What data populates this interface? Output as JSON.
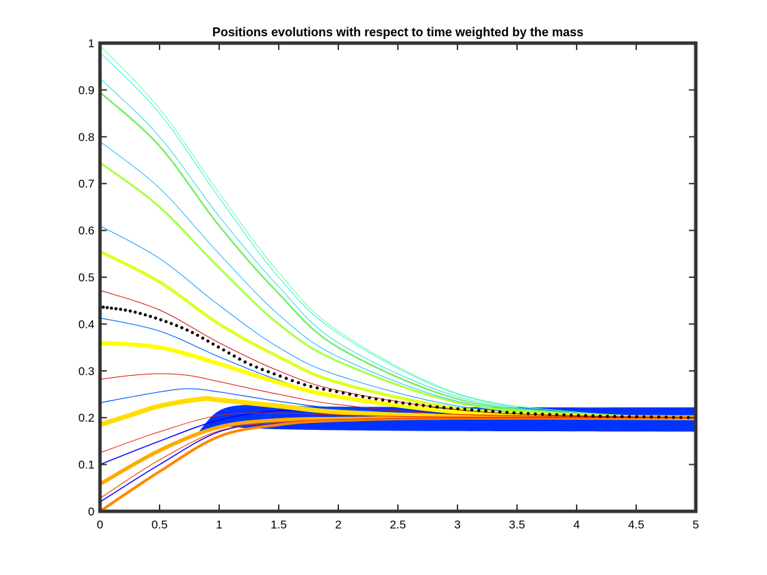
{
  "chart_data": {
    "type": "line",
    "title": "Positions evolutions with respect to time weighted by the mass",
    "xlabel": "",
    "ylabel": "",
    "xlim": [
      0,
      5
    ],
    "ylim": [
      0,
      1
    ],
    "x_ticks": [
      "0",
      "0.5",
      "1",
      "1.5",
      "2",
      "2.5",
      "3",
      "3.5",
      "4",
      "4.5",
      "5"
    ],
    "y_ticks": [
      "0",
      "0.1",
      "0.2",
      "0.3",
      "0.4",
      "0.5",
      "0.6",
      "0.7",
      "0.8",
      "0.9",
      "1"
    ],
    "grid": false,
    "converge_to": 0.2,
    "series": [
      {
        "color": "#0000ff",
        "weight": 1.5,
        "values": [
          [
            0,
            0.02
          ],
          [
            0.5,
            0.1
          ],
          [
            1,
            0.17
          ],
          [
            1.5,
            0.19
          ],
          [
            2,
            0.196
          ],
          [
            3,
            0.199
          ],
          [
            5,
            0.2
          ]
        ]
      },
      {
        "color": "#0000ff",
        "weight": 1.5,
        "values": [
          [
            0,
            0.1
          ],
          [
            0.5,
            0.15
          ],
          [
            1,
            0.195
          ],
          [
            1.5,
            0.215
          ],
          [
            2,
            0.21
          ],
          [
            3,
            0.203
          ],
          [
            5,
            0.2
          ]
        ]
      },
      {
        "color": "#0055ff",
        "weight": 1.2,
        "values": [
          [
            0,
            0.232
          ],
          [
            0.5,
            0.255
          ],
          [
            0.75,
            0.262
          ],
          [
            1,
            0.255
          ],
          [
            1.5,
            0.235
          ],
          [
            2,
            0.22
          ],
          [
            3,
            0.205
          ],
          [
            5,
            0.2
          ]
        ]
      },
      {
        "color": "#0070ff",
        "weight": 1.2,
        "values": [
          [
            0,
            0.413
          ],
          [
            0.5,
            0.385
          ],
          [
            1,
            0.33
          ],
          [
            1.5,
            0.28
          ],
          [
            2,
            0.245
          ],
          [
            3,
            0.213
          ],
          [
            4,
            0.203
          ],
          [
            5,
            0.2
          ]
        ]
      },
      {
        "color": "#0099ff",
        "weight": 1.0,
        "values": [
          [
            0,
            0.61
          ],
          [
            0.5,
            0.54
          ],
          [
            1,
            0.44
          ],
          [
            1.5,
            0.35
          ],
          [
            2,
            0.29
          ],
          [
            3,
            0.225
          ],
          [
            4,
            0.206
          ],
          [
            5,
            0.2
          ]
        ]
      },
      {
        "color": "#11bbff",
        "weight": 1.0,
        "values": [
          [
            0,
            0.79
          ],
          [
            0.5,
            0.69
          ],
          [
            1,
            0.55
          ],
          [
            1.5,
            0.42
          ],
          [
            2,
            0.33
          ],
          [
            3,
            0.235
          ],
          [
            4,
            0.208
          ],
          [
            5,
            0.2
          ]
        ]
      },
      {
        "color": "#22d8e8",
        "weight": 1.0,
        "values": [
          [
            0,
            0.925
          ],
          [
            0.5,
            0.8
          ],
          [
            1,
            0.63
          ],
          [
            1.5,
            0.48
          ],
          [
            2,
            0.36
          ],
          [
            3,
            0.245
          ],
          [
            4,
            0.21
          ],
          [
            5,
            0.2
          ]
        ]
      },
      {
        "color": "#33eedd",
        "weight": 1.0,
        "values": [
          [
            0,
            0.98
          ],
          [
            0.5,
            0.85
          ],
          [
            1,
            0.67
          ],
          [
            1.5,
            0.5
          ],
          [
            2,
            0.38
          ],
          [
            3,
            0.25
          ],
          [
            4,
            0.212
          ],
          [
            5,
            0.2
          ]
        ]
      },
      {
        "color": "#66ff99",
        "weight": 1.0,
        "values": [
          [
            0,
            0.995
          ],
          [
            0.5,
            0.86
          ],
          [
            1,
            0.68
          ],
          [
            1.5,
            0.51
          ],
          [
            2,
            0.385
          ],
          [
            3,
            0.252
          ],
          [
            4,
            0.212
          ],
          [
            5,
            0.2
          ]
        ]
      },
      {
        "color": "#77ee66",
        "weight": 2.5,
        "values": [
          [
            0,
            0.895
          ],
          [
            0.5,
            0.78
          ],
          [
            1,
            0.61
          ],
          [
            1.5,
            0.465
          ],
          [
            2,
            0.35
          ],
          [
            3,
            0.24
          ],
          [
            4,
            0.209
          ],
          [
            5,
            0.2
          ]
        ]
      },
      {
        "color": "#aaff44",
        "weight": 3.0,
        "values": [
          [
            0,
            0.745
          ],
          [
            0.5,
            0.65
          ],
          [
            1,
            0.52
          ],
          [
            1.5,
            0.4
          ],
          [
            2,
            0.32
          ],
          [
            3,
            0.232
          ],
          [
            4,
            0.207
          ],
          [
            5,
            0.2
          ]
        ]
      },
      {
        "color": "#ddff22",
        "weight": 4.5,
        "values": [
          [
            0,
            0.555
          ],
          [
            0.5,
            0.49
          ],
          [
            1,
            0.4
          ],
          [
            1.5,
            0.33
          ],
          [
            2,
            0.275
          ],
          [
            3,
            0.22
          ],
          [
            4,
            0.205
          ],
          [
            5,
            0.2
          ]
        ]
      },
      {
        "color": "#ffff00",
        "weight": 6.0,
        "values": [
          [
            0,
            0.36
          ],
          [
            0.5,
            0.35
          ],
          [
            1,
            0.315
          ],
          [
            1.5,
            0.275
          ],
          [
            2,
            0.245
          ],
          [
            3,
            0.212
          ],
          [
            4,
            0.203
          ],
          [
            5,
            0.2
          ]
        ]
      },
      {
        "color": "#ffdd00",
        "weight": 7.0,
        "values": [
          [
            0,
            0.185
          ],
          [
            0.25,
            0.205
          ],
          [
            0.5,
            0.225
          ],
          [
            0.85,
            0.24
          ],
          [
            1,
            0.238
          ],
          [
            1.5,
            0.225
          ],
          [
            2,
            0.212
          ],
          [
            3,
            0.203
          ],
          [
            5,
            0.2
          ]
        ]
      },
      {
        "color": "#ffaa00",
        "weight": 5.5,
        "values": [
          [
            0,
            0.058
          ],
          [
            0.5,
            0.13
          ],
          [
            1,
            0.18
          ],
          [
            1.5,
            0.195
          ],
          [
            2,
            0.198
          ],
          [
            3,
            0.2
          ],
          [
            5,
            0.2
          ]
        ]
      },
      {
        "color": "#ff8800",
        "weight": 4.0,
        "values": [
          [
            0,
            0.0
          ],
          [
            0.5,
            0.085
          ],
          [
            1,
            0.16
          ],
          [
            1.5,
            0.185
          ],
          [
            2,
            0.194
          ],
          [
            3,
            0.199
          ],
          [
            5,
            0.2
          ]
        ]
      },
      {
        "color": "#ee4400",
        "weight": 1.2,
        "values": [
          [
            0,
            0.028
          ],
          [
            0.5,
            0.11
          ],
          [
            1,
            0.172
          ],
          [
            1.5,
            0.19
          ],
          [
            2,
            0.196
          ],
          [
            3,
            0.199
          ],
          [
            5,
            0.2
          ]
        ]
      },
      {
        "color": "#ee2200",
        "weight": 1.0,
        "values": [
          [
            0,
            0.125
          ],
          [
            0.5,
            0.17
          ],
          [
            1,
            0.205
          ],
          [
            1.5,
            0.21
          ],
          [
            2,
            0.206
          ],
          [
            3,
            0.201
          ],
          [
            5,
            0.2
          ]
        ]
      },
      {
        "color": "#dd1100",
        "weight": 1.0,
        "values": [
          [
            0,
            0.282
          ],
          [
            0.25,
            0.29
          ],
          [
            0.5,
            0.294
          ],
          [
            0.75,
            0.29
          ],
          [
            1,
            0.277
          ],
          [
            1.5,
            0.25
          ],
          [
            2,
            0.228
          ],
          [
            3,
            0.207
          ],
          [
            5,
            0.2
          ]
        ]
      },
      {
        "color": "#cc0000",
        "weight": 1.0,
        "values": [
          [
            0,
            0.472
          ],
          [
            0.5,
            0.43
          ],
          [
            1,
            0.36
          ],
          [
            1.5,
            0.3
          ],
          [
            2,
            0.258
          ],
          [
            3,
            0.217
          ],
          [
            4,
            0.204
          ],
          [
            5,
            0.2
          ]
        ]
      }
    ],
    "band": {
      "color": "#0033ff",
      "upper": [
        [
          0.8,
          0.16
        ],
        [
          1,
          0.215
        ],
        [
          1.3,
          0.228
        ],
        [
          1.8,
          0.224
        ],
        [
          2.5,
          0.223
        ],
        [
          3.5,
          0.222
        ],
        [
          5,
          0.222
        ]
      ],
      "lower": [
        [
          0.8,
          0.16
        ],
        [
          1,
          0.18
        ],
        [
          1.3,
          0.177
        ],
        [
          1.8,
          0.174
        ],
        [
          2.5,
          0.172
        ],
        [
          3.5,
          0.171
        ],
        [
          5,
          0.17
        ]
      ]
    },
    "mean_series": {
      "color": "#000000",
      "marker": "dot",
      "values": [
        [
          0,
          0.437
        ],
        [
          0.25,
          0.428
        ],
        [
          0.5,
          0.41
        ],
        [
          0.75,
          0.385
        ],
        [
          1,
          0.35
        ],
        [
          1.25,
          0.315
        ],
        [
          1.5,
          0.29
        ],
        [
          1.75,
          0.268
        ],
        [
          2,
          0.255
        ],
        [
          2.25,
          0.243
        ],
        [
          2.5,
          0.233
        ],
        [
          2.75,
          0.225
        ],
        [
          3,
          0.219
        ],
        [
          3.25,
          0.214
        ],
        [
          3.5,
          0.21
        ],
        [
          3.75,
          0.207
        ],
        [
          4,
          0.205
        ],
        [
          4.25,
          0.203
        ],
        [
          4.5,
          0.202
        ],
        [
          4.75,
          0.201
        ],
        [
          5,
          0.2
        ]
      ]
    }
  }
}
